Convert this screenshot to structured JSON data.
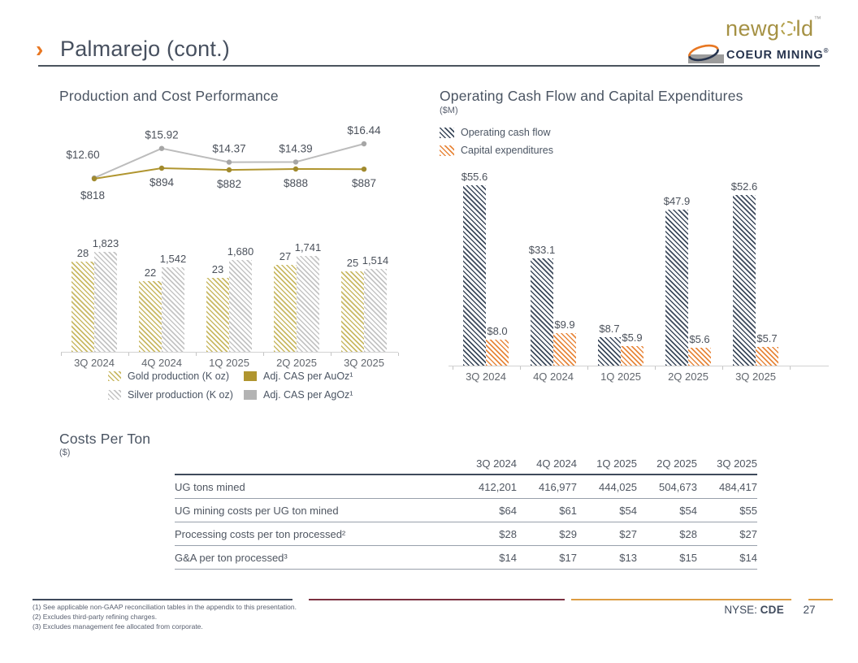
{
  "header": {
    "chevron": "›",
    "title": "Palmarejo (cont.)",
    "newgold_pre": "newg",
    "newgold_post": "ld",
    "newgold_tm": "™",
    "coeur_text": "COEUR MINING",
    "coeur_reg": "®"
  },
  "colors": {
    "accent_orange": "#e87722",
    "slate_navy": "#3f4a5c",
    "gold": "#b09a33",
    "silver": "#b3b3b3",
    "capex_orange": "#e8873c",
    "divider_maroon": "#7b3040",
    "divider_orange": "#dd9c42"
  },
  "chart_data": [
    {
      "type": "bar",
      "subtype": "combo-line-bar",
      "title": "Production and Cost Performance",
      "categories": [
        "3Q 2024",
        "4Q 2024",
        "1Q 2025",
        "2Q 2025",
        "3Q 2025"
      ],
      "legend_position": "bottom",
      "series": [
        {
          "name": "Gold production (K oz)",
          "type": "bar",
          "style": "hatch",
          "color": "#c9b964",
          "values": [
            28,
            22,
            23,
            27,
            25
          ],
          "labels": [
            "28",
            "22",
            "23",
            "27",
            "25"
          ],
          "ylim": [
            0,
            34
          ]
        },
        {
          "name": "Silver production (K oz)",
          "type": "bar",
          "style": "hatch",
          "color": "#c4c4c4",
          "values": [
            1823,
            1542,
            1680,
            1741,
            1514
          ],
          "labels": [
            "1,823",
            "1,542",
            "1,680",
            "1,741",
            "1,514"
          ],
          "ylim": [
            0,
            2000
          ]
        },
        {
          "name": "Adj. CAS per AuOz¹",
          "type": "line",
          "style": "solid",
          "color": "#b0952f",
          "values": [
            818,
            894,
            882,
            888,
            887
          ],
          "labels": [
            "$818",
            "$894",
            "$882",
            "$888",
            "$887"
          ]
        },
        {
          "name": "Adj. CAS per AgOz¹",
          "type": "line",
          "style": "solid",
          "color": "#b3b3b3",
          "values": [
            12.6,
            15.92,
            14.37,
            14.39,
            16.44
          ],
          "labels": [
            "$12.60",
            "$15.92",
            "$14.37",
            "$14.39",
            "$16.44"
          ]
        }
      ]
    },
    {
      "type": "bar",
      "title": "Operating Cash Flow and Capital Expenditures",
      "subtitle": "($M)",
      "categories": [
        "3Q 2024",
        "4Q 2024",
        "1Q 2025",
        "2Q 2025",
        "3Q 2025"
      ],
      "legend_position": "top-left",
      "ylim": [
        0,
        58
      ],
      "series": [
        {
          "name": "Operating cash flow",
          "style": "hatch",
          "color": "#3d4a5c",
          "values": [
            55.6,
            33.1,
            8.7,
            47.9,
            52.6
          ],
          "labels": [
            "$55.6",
            "$33.1",
            "$8.7",
            "$47.9",
            "$52.6"
          ]
        },
        {
          "name": "Capital expenditures",
          "style": "hatch",
          "color": "#e8873c",
          "values": [
            8.0,
            9.9,
            5.9,
            5.6,
            5.7
          ],
          "labels": [
            "$8.0",
            "$9.9",
            "$5.9",
            "$5.6",
            "$5.7"
          ]
        }
      ]
    }
  ],
  "costs_table": {
    "title": "Costs Per Ton",
    "subtitle": "($)",
    "columns": [
      "3Q 2024",
      "4Q 2024",
      "1Q 2025",
      "2Q 2025",
      "3Q 2025"
    ],
    "rows": [
      {
        "label": "UG tons mined",
        "values": [
          "412,201",
          "416,977",
          "444,025",
          "504,673",
          "484,417"
        ]
      },
      {
        "label": "UG mining costs per UG ton mined",
        "values": [
          "$64",
          "$61",
          "$54",
          "$54",
          "$55"
        ]
      },
      {
        "label": "Processing costs per ton processed²",
        "values": [
          "$28",
          "$29",
          "$27",
          "$28",
          "$27"
        ]
      },
      {
        "label": "G&A per ton processed³",
        "values": [
          "$14",
          "$17",
          "$13",
          "$15",
          "$14"
        ]
      }
    ]
  },
  "footnotes": [
    "(1) See applicable non-GAAP reconciliation tables in the appendix to this presentation.",
    "(2) Excludes third-party refining charges.",
    "(3) Excludes management fee allocated from corporate."
  ],
  "footer": {
    "exchange_label": "NYSE:",
    "ticker": "CDE",
    "page_number": "27"
  }
}
